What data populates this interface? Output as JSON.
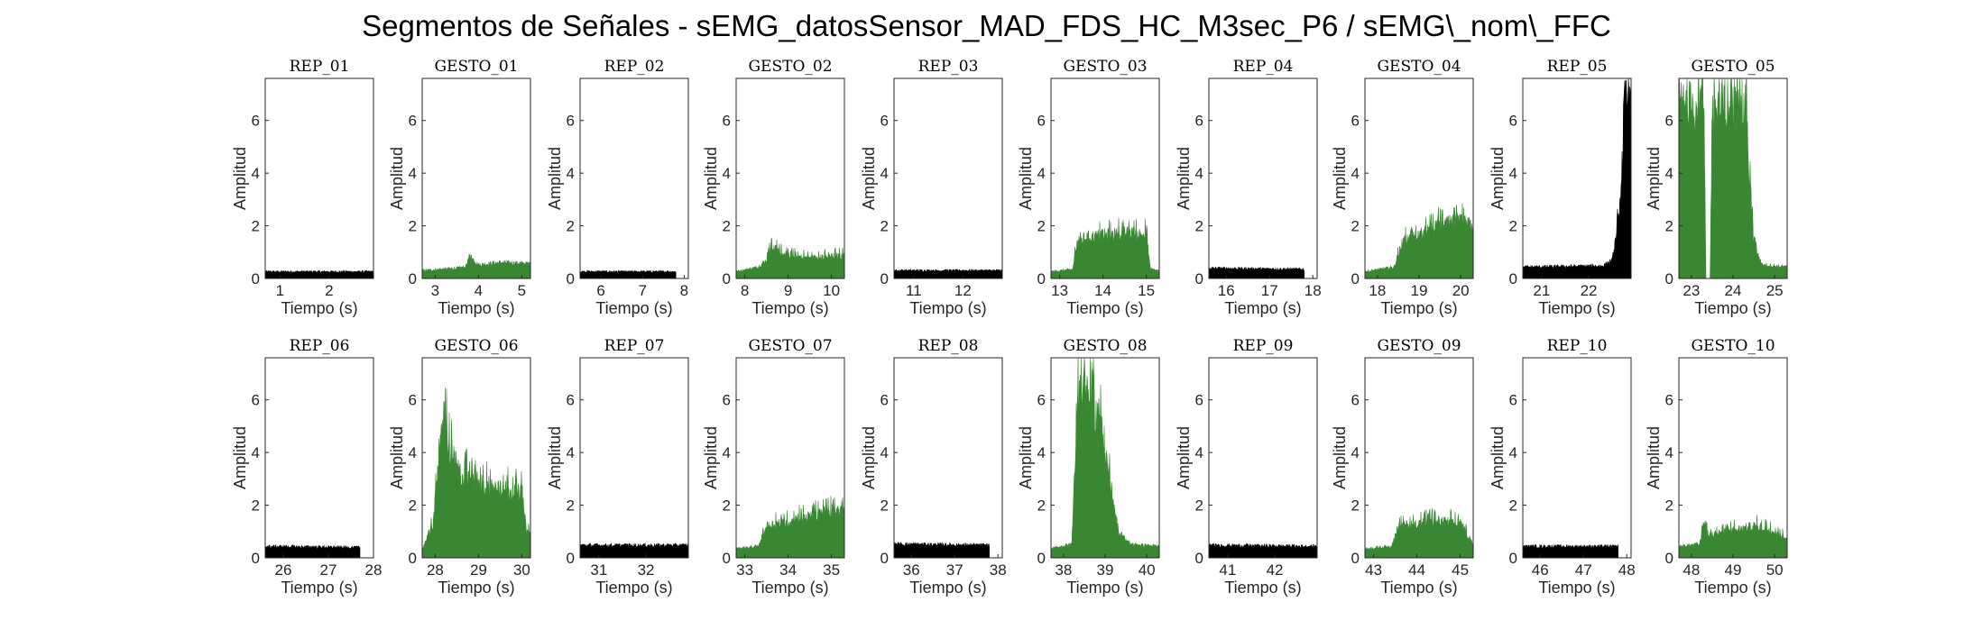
{
  "figure": {
    "title": "Segmentos de Señales - sEMG_datosSensor_MAD_FDS_HC_M3sec_P6 / sEMG\\_nom\\_FFC"
  },
  "colors": {
    "rep": "#000000",
    "gesto": "#3a8733",
    "axis": "#262626"
  },
  "chart_data": [
    {
      "type": "area",
      "title": "REP_01",
      "xlabel": "Tiempo (s)",
      "ylabel": "Amplitud",
      "xlim": [
        0.7,
        2.9
      ],
      "ylim": [
        0,
        7.6
      ],
      "xticks": [
        1,
        2
      ],
      "yticks": [
        0,
        2,
        4,
        6
      ],
      "series": [
        {
          "color": "#000000",
          "x": [
            0.7,
            2.9
          ],
          "y": [
            0.3,
            0.3
          ]
        }
      ]
    },
    {
      "type": "area",
      "title": "GESTO_01",
      "xlabel": "Tiempo (s)",
      "ylabel": "Amplitud",
      "xlim": [
        2.7,
        5.2
      ],
      "ylim": [
        0,
        7.6
      ],
      "xticks": [
        3,
        4,
        5
      ],
      "yticks": [
        0,
        2,
        4,
        6
      ],
      "series": [
        {
          "color": "#3a8733",
          "x": [
            2.7,
            3.5,
            3.7,
            3.8,
            4.0,
            4.5,
            5.2
          ],
          "y": [
            0.35,
            0.45,
            0.5,
            1.0,
            0.6,
            0.7,
            0.65
          ]
        }
      ]
    },
    {
      "type": "area",
      "title": "REP_02",
      "xlabel": "Tiempo (s)",
      "ylabel": "Amplitud",
      "xlim": [
        5.5,
        8.1
      ],
      "ylim": [
        0,
        7.6
      ],
      "xticks": [
        6,
        7,
        8
      ],
      "yticks": [
        0,
        2,
        4,
        6
      ],
      "series": [
        {
          "color": "#000000",
          "x": [
            5.5,
            7.8
          ],
          "y": [
            0.3,
            0.3
          ]
        }
      ]
    },
    {
      "type": "area",
      "title": "GESTO_02",
      "xlabel": "Tiempo (s)",
      "ylabel": "Amplitud",
      "xlim": [
        7.8,
        10.3
      ],
      "ylim": [
        0,
        7.6
      ],
      "xticks": [
        8,
        9,
        10
      ],
      "yticks": [
        0,
        2,
        4,
        6
      ],
      "series": [
        {
          "color": "#3a8733",
          "x": [
            7.8,
            8.3,
            8.5,
            8.6,
            9.0,
            9.5,
            10.3
          ],
          "y": [
            0.3,
            0.5,
            0.8,
            1.4,
            1.0,
            0.9,
            1.0
          ]
        }
      ]
    },
    {
      "type": "area",
      "title": "REP_03",
      "xlabel": "Tiempo (s)",
      "ylabel": "Amplitud",
      "xlim": [
        10.6,
        12.8
      ],
      "ylim": [
        0,
        7.6
      ],
      "xticks": [
        11,
        12
      ],
      "yticks": [
        0,
        2,
        4,
        6
      ],
      "series": [
        {
          "color": "#000000",
          "x": [
            10.6,
            12.8
          ],
          "y": [
            0.35,
            0.35
          ]
        }
      ]
    },
    {
      "type": "area",
      "title": "GESTO_03",
      "xlabel": "Tiempo (s)",
      "ylabel": "Amplitud",
      "xlim": [
        12.8,
        15.3
      ],
      "ylim": [
        0,
        7.6
      ],
      "xticks": [
        13,
        14,
        15
      ],
      "yticks": [
        0,
        2,
        4,
        6
      ],
      "series": [
        {
          "color": "#3a8733",
          "x": [
            12.8,
            13.3,
            13.4,
            13.6,
            14.0,
            14.6,
            15.0,
            15.1,
            15.3
          ],
          "y": [
            0.3,
            0.4,
            1.6,
            1.8,
            1.9,
            2.0,
            1.9,
            0.4,
            0.35
          ]
        }
      ]
    },
    {
      "type": "area",
      "title": "REP_04",
      "xlabel": "Tiempo (s)",
      "ylabel": "Amplitud",
      "xlim": [
        15.6,
        18.1
      ],
      "ylim": [
        0,
        7.6
      ],
      "xticks": [
        16,
        17,
        18
      ],
      "yticks": [
        0,
        2,
        4,
        6
      ],
      "series": [
        {
          "color": "#000000",
          "x": [
            15.6,
            17.8
          ],
          "y": [
            0.45,
            0.4
          ]
        }
      ]
    },
    {
      "type": "area",
      "title": "GESTO_04",
      "xlabel": "Tiempo (s)",
      "ylabel": "Amplitud",
      "xlim": [
        17.7,
        20.3
      ],
      "ylim": [
        0,
        7.6
      ],
      "xticks": [
        18,
        19,
        20
      ],
      "yticks": [
        0,
        2,
        4,
        6
      ],
      "series": [
        {
          "color": "#3a8733",
          "x": [
            17.7,
            18.4,
            18.6,
            19.0,
            19.5,
            19.9,
            20.3
          ],
          "y": [
            0.3,
            0.5,
            1.6,
            1.9,
            2.3,
            2.5,
            2.3
          ]
        }
      ]
    },
    {
      "type": "area",
      "title": "REP_05",
      "xlabel": "Tiempo (s)",
      "ylabel": "Amplitud",
      "xlim": [
        20.6,
        22.9
      ],
      "ylim": [
        0,
        7.6
      ],
      "xticks": [
        21,
        22
      ],
      "yticks": [
        0,
        2,
        4,
        6
      ],
      "series": [
        {
          "color": "#000000",
          "x": [
            20.6,
            22.3,
            22.5,
            22.6,
            22.7,
            22.75,
            22.9
          ],
          "y": [
            0.5,
            0.55,
            0.8,
            2.0,
            3.8,
            7.6,
            7.6
          ]
        }
      ]
    },
    {
      "type": "area",
      "title": "GESTO_05",
      "xlabel": "Tiempo (s)",
      "ylabel": "Amplitud",
      "xlim": [
        22.7,
        25.3
      ],
      "ylim": [
        0,
        7.6
      ],
      "xticks": [
        23,
        24,
        25
      ],
      "yticks": [
        0,
        2,
        4,
        6
      ],
      "series": [
        {
          "color": "#3a8733",
          "x": [
            22.7,
            23.3,
            23.35,
            23.45,
            23.5,
            24.3,
            24.5,
            24.7,
            25.3
          ],
          "y": [
            7.6,
            7.6,
            0,
            0,
            7.5,
            7.4,
            1.5,
            0.6,
            0.5
          ]
        }
      ]
    },
    {
      "type": "area",
      "title": "REP_06",
      "xlabel": "Tiempo (s)",
      "ylabel": "Amplitud",
      "xlim": [
        25.6,
        28.0
      ],
      "ylim": [
        0,
        7.6
      ],
      "xticks": [
        26,
        27,
        28
      ],
      "yticks": [
        0,
        2,
        4,
        6
      ],
      "series": [
        {
          "color": "#000000",
          "x": [
            25.6,
            27.7
          ],
          "y": [
            0.5,
            0.45
          ]
        }
      ]
    },
    {
      "type": "area",
      "title": "GESTO_06",
      "xlabel": "Tiempo (s)",
      "ylabel": "Amplitud",
      "xlim": [
        27.7,
        30.2
      ],
      "ylim": [
        0,
        7.6
      ],
      "xticks": [
        28,
        29,
        30
      ],
      "yticks": [
        0,
        2,
        4,
        6
      ],
      "series": [
        {
          "color": "#3a8733",
          "x": [
            27.7,
            27.95,
            28.1,
            28.2,
            28.3,
            28.6,
            29.0,
            29.5,
            30.0,
            30.1,
            30.2
          ],
          "y": [
            0.4,
            1.5,
            4.5,
            6.3,
            4.8,
            3.6,
            3.3,
            3.0,
            2.8,
            1.3,
            1.0
          ]
        }
      ]
    },
    {
      "type": "area",
      "title": "REP_07",
      "xlabel": "Tiempo (s)",
      "ylabel": "Amplitud",
      "xlim": [
        30.6,
        32.9
      ],
      "ylim": [
        0,
        7.6
      ],
      "xticks": [
        31,
        32
      ],
      "yticks": [
        0,
        2,
        4,
        6
      ],
      "series": [
        {
          "color": "#000000",
          "x": [
            30.6,
            32.9
          ],
          "y": [
            0.55,
            0.55
          ]
        }
      ]
    },
    {
      "type": "area",
      "title": "GESTO_07",
      "xlabel": "Tiempo (s)",
      "ylabel": "Amplitud",
      "xlim": [
        32.8,
        35.3
      ],
      "ylim": [
        0,
        7.6
      ],
      "xticks": [
        33,
        34,
        35
      ],
      "yticks": [
        0,
        2,
        4,
        6
      ],
      "series": [
        {
          "color": "#3a8733",
          "x": [
            32.8,
            33.3,
            33.5,
            34.0,
            34.5,
            35.0,
            35.3
          ],
          "y": [
            0.4,
            0.5,
            1.4,
            1.6,
            1.8,
            2.1,
            2.0
          ]
        }
      ]
    },
    {
      "type": "area",
      "title": "REP_08",
      "xlabel": "Tiempo (s)",
      "ylabel": "Amplitud",
      "xlim": [
        35.6,
        38.1
      ],
      "ylim": [
        0,
        7.6
      ],
      "xticks": [
        36,
        37,
        38
      ],
      "yticks": [
        0,
        2,
        4,
        6
      ],
      "series": [
        {
          "color": "#000000",
          "x": [
            35.6,
            37.8
          ],
          "y": [
            0.6,
            0.55
          ]
        }
      ]
    },
    {
      "type": "area",
      "title": "GESTO_08",
      "xlabel": "Tiempo (s)",
      "ylabel": "Amplitud",
      "xlim": [
        37.7,
        40.3
      ],
      "ylim": [
        0,
        7.6
      ],
      "xticks": [
        38,
        39,
        40
      ],
      "yticks": [
        0,
        2,
        4,
        6
      ],
      "series": [
        {
          "color": "#3a8733",
          "x": [
            37.7,
            38.2,
            38.35,
            38.45,
            38.9,
            39.1,
            39.3,
            39.6,
            40.3
          ],
          "y": [
            0.4,
            0.6,
            7.6,
            7.6,
            6.0,
            3.5,
            1.2,
            0.6,
            0.5
          ]
        }
      ]
    },
    {
      "type": "area",
      "title": "REP_09",
      "xlabel": "Tiempo (s)",
      "ylabel": "Amplitud",
      "xlim": [
        40.6,
        42.9
      ],
      "ylim": [
        0,
        7.6
      ],
      "xticks": [
        41,
        42
      ],
      "yticks": [
        0,
        2,
        4,
        6
      ],
      "series": [
        {
          "color": "#000000",
          "x": [
            40.6,
            42.9
          ],
          "y": [
            0.55,
            0.5
          ]
        }
      ]
    },
    {
      "type": "area",
      "title": "GESTO_09",
      "xlabel": "Tiempo (s)",
      "ylabel": "Amplitud",
      "xlim": [
        42.8,
        45.3
      ],
      "ylim": [
        0,
        7.6
      ],
      "xticks": [
        43,
        44,
        45
      ],
      "yticks": [
        0,
        2,
        4,
        6
      ],
      "series": [
        {
          "color": "#3a8733",
          "x": [
            42.8,
            43.4,
            43.6,
            44.0,
            44.5,
            45.0,
            45.3
          ],
          "y": [
            0.4,
            0.5,
            1.4,
            1.5,
            1.6,
            1.5,
            0.6
          ]
        }
      ]
    },
    {
      "type": "area",
      "title": "REP_10",
      "xlabel": "Tiempo (s)",
      "ylabel": "Amplitud",
      "xlim": [
        45.6,
        48.1
      ],
      "ylim": [
        0,
        7.6
      ],
      "xticks": [
        46,
        47,
        48
      ],
      "yticks": [
        0,
        2,
        4,
        6
      ],
      "series": [
        {
          "color": "#000000",
          "x": [
            45.6,
            47.8
          ],
          "y": [
            0.5,
            0.5
          ]
        }
      ]
    },
    {
      "type": "area",
      "title": "GESTO_10",
      "xlabel": "Tiempo (s)",
      "ylabel": "Amplitud",
      "xlim": [
        47.7,
        50.3
      ],
      "ylim": [
        0,
        7.6
      ],
      "xticks": [
        48,
        49,
        50
      ],
      "yticks": [
        0,
        2,
        4,
        6
      ],
      "series": [
        {
          "color": "#3a8733",
          "x": [
            47.7,
            48.2,
            48.3,
            48.4,
            49.0,
            49.5,
            50.0,
            50.3
          ],
          "y": [
            0.5,
            0.6,
            1.6,
            1.0,
            1.2,
            1.4,
            1.2,
            0.8
          ]
        }
      ]
    }
  ]
}
